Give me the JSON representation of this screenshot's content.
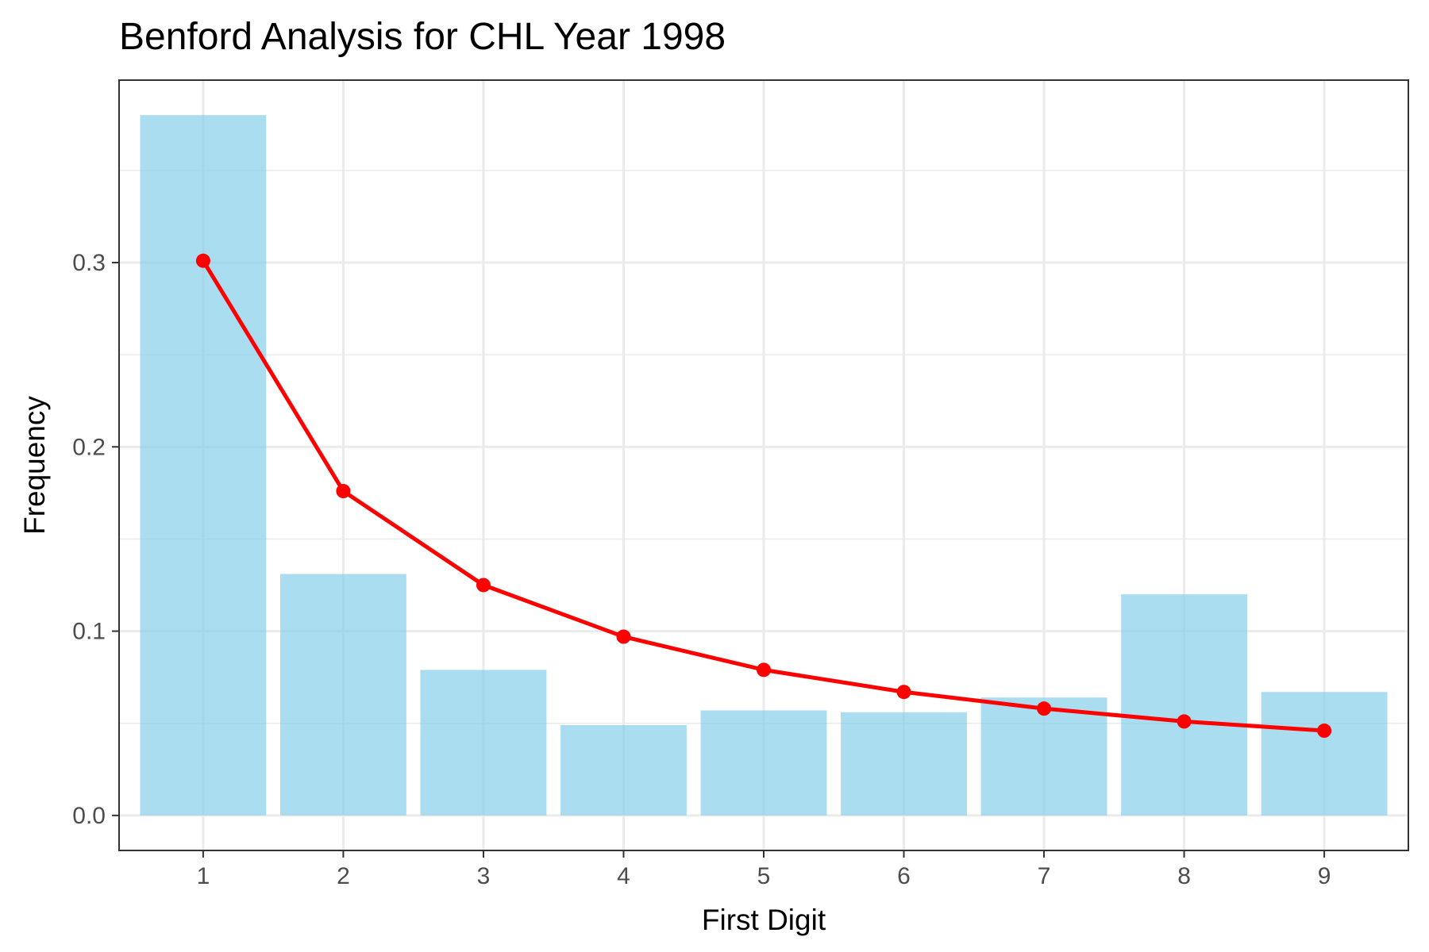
{
  "chart_data": {
    "type": "bar",
    "title": "Benford Analysis for CHL Year 1998",
    "xlabel": "First Digit",
    "ylabel": "Frequency",
    "categories": [
      "1",
      "2",
      "3",
      "4",
      "5",
      "6",
      "7",
      "8",
      "9"
    ],
    "series": [
      {
        "kind": "bar",
        "values": [
          0.38,
          0.131,
          0.079,
          0.049,
          0.057,
          0.056,
          0.064,
          0.12,
          0.067
        ],
        "color": "#87CEEB"
      },
      {
        "kind": "line-with-points",
        "values": [
          0.301,
          0.176,
          0.125,
          0.097,
          0.079,
          0.067,
          0.058,
          0.051,
          0.046
        ],
        "color": "#FF0000"
      }
    ],
    "ylim": [
      -0.019,
      0.399
    ],
    "y_ticks": [
      "0.0",
      "0.1",
      "0.2",
      "0.3"
    ],
    "y_tick_values": [
      0,
      0.1,
      0.2,
      0.3
    ],
    "y_minor_values": [
      0.05,
      0.15,
      0.25,
      0.35
    ],
    "grid": true,
    "legend": "none",
    "colors": {
      "panel_border": "#333333",
      "grid": "#ebebeb",
      "tick": "#333333"
    }
  }
}
